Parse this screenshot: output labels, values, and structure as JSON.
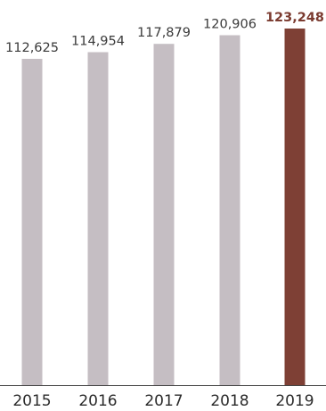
{
  "chart_data": {
    "type": "bar",
    "categories": [
      "2015",
      "2016",
      "2017",
      "2018",
      "2019"
    ],
    "values": [
      112625,
      114954,
      117879,
      120906,
      123248
    ],
    "value_labels": [
      "112,625",
      "114,954",
      "117,879",
      "120,906",
      "123,248"
    ],
    "highlight_index": 4,
    "ylim": [
      0,
      123248
    ],
    "grid": false,
    "legend": "none",
    "colors": {
      "bar": "#c5bec3",
      "highlight_bar": "#7e4035",
      "highlight_label": "#7b3b30",
      "baseline": "#444444"
    }
  }
}
